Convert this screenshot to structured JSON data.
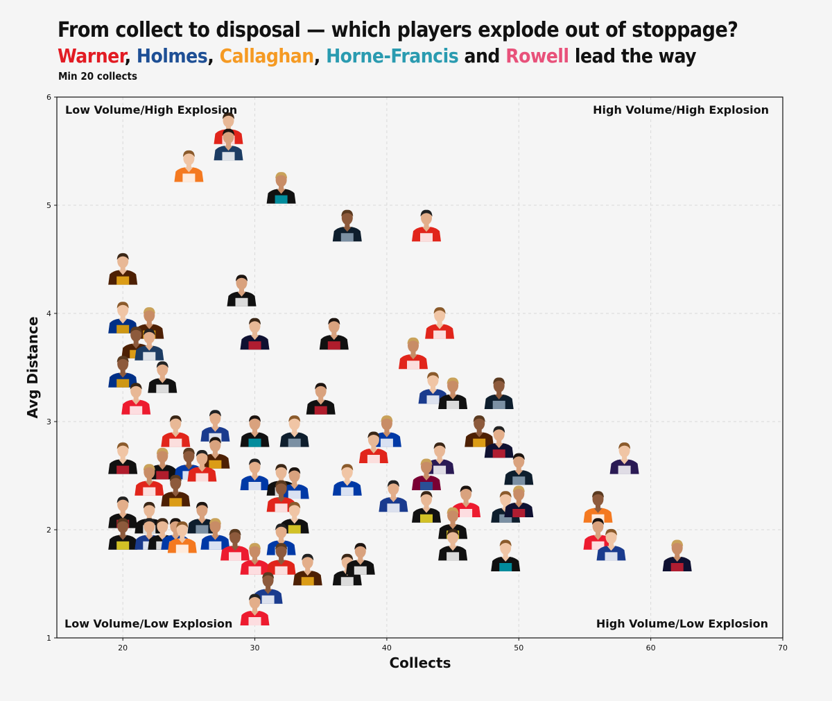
{
  "title": "From collect to disposal — which players explode out of stoppage?",
  "subtitle": {
    "parts": [
      {
        "text": "Warner",
        "color": "#e21b23"
      },
      {
        "text": ", ",
        "color": "#111111"
      },
      {
        "text": "Holmes",
        "color": "#1e4f95"
      },
      {
        "text": ", ",
        "color": "#111111"
      },
      {
        "text": "Callaghan",
        "color": "#f59a23"
      },
      {
        "text": ", ",
        "color": "#111111"
      },
      {
        "text": "Horne-Francis",
        "color": "#2a9bb0"
      },
      {
        "text": " and ",
        "color": "#111111"
      },
      {
        "text": "Rowell",
        "color": "#e8517a"
      },
      {
        "text": " lead the way",
        "color": "#111111"
      }
    ]
  },
  "note": "Min 20 collects",
  "chart_data": {
    "type": "scatter",
    "xlabel": "Collects",
    "ylabel": "Avg Distance",
    "xlim": [
      15,
      70
    ],
    "ylim": [
      1,
      6
    ],
    "xticks": [
      20,
      30,
      40,
      50,
      60,
      70
    ],
    "yticks": [
      1,
      2,
      3,
      4,
      5,
      6
    ],
    "grid": true,
    "marker": "player-headshot",
    "quadrant_labels": {
      "top_left": "Low Volume/High Explosion",
      "top_right": "High Volume/High Explosion",
      "bottom_left": "Low Volume/Low Explosion",
      "bottom_right": "High Volume/Low Explosion"
    },
    "points": [
      {
        "x": 28,
        "y": 5.7,
        "club": "Sydney"
      },
      {
        "x": 28,
        "y": 5.55,
        "club": "Geelong"
      },
      {
        "x": 25,
        "y": 5.35,
        "club": "GWS"
      },
      {
        "x": 32,
        "y": 5.15,
        "club": "Port Adelaide"
      },
      {
        "x": 37,
        "y": 4.8,
        "club": "Carlton"
      },
      {
        "x": 43,
        "y": 4.8,
        "club": "Sydney"
      },
      {
        "x": 20,
        "y": 4.4,
        "club": "Hawthorn"
      },
      {
        "x": 29,
        "y": 4.2,
        "club": "Collingwood"
      },
      {
        "x": 20,
        "y": 3.95,
        "club": "West Coast"
      },
      {
        "x": 22,
        "y": 3.9,
        "club": "Hawthorn"
      },
      {
        "x": 21,
        "y": 3.72,
        "club": "Hawthorn"
      },
      {
        "x": 22,
        "y": 3.7,
        "club": "Geelong"
      },
      {
        "x": 30,
        "y": 3.8,
        "club": "Melbourne"
      },
      {
        "x": 36,
        "y": 3.8,
        "club": "Essendon"
      },
      {
        "x": 44,
        "y": 3.9,
        "club": "Sydney"
      },
      {
        "x": 42,
        "y": 3.62,
        "club": "Sydney"
      },
      {
        "x": 20,
        "y": 3.45,
        "club": "West Coast"
      },
      {
        "x": 23,
        "y": 3.4,
        "club": "Collingwood"
      },
      {
        "x": 21,
        "y": 3.2,
        "club": "St Kilda"
      },
      {
        "x": 35,
        "y": 3.2,
        "club": "Essendon"
      },
      {
        "x": 43.5,
        "y": 3.3,
        "club": "North Melbourne"
      },
      {
        "x": 45,
        "y": 3.25,
        "club": "Collingwood"
      },
      {
        "x": 48.5,
        "y": 3.25,
        "club": "Carlton"
      },
      {
        "x": 27,
        "y": 2.95,
        "club": "North Melbourne"
      },
      {
        "x": 24,
        "y": 2.9,
        "club": "Sydney"
      },
      {
        "x": 30,
        "y": 2.9,
        "club": "Port Adelaide"
      },
      {
        "x": 33,
        "y": 2.9,
        "club": "Carlton"
      },
      {
        "x": 40,
        "y": 2.9,
        "club": "Western Bulldogs"
      },
      {
        "x": 47,
        "y": 2.9,
        "club": "Hawthorn"
      },
      {
        "x": 48.5,
        "y": 2.8,
        "club": "Melbourne"
      },
      {
        "x": 39,
        "y": 2.75,
        "club": "Sydney"
      },
      {
        "x": 27,
        "y": 2.7,
        "club": "Hawthorn"
      },
      {
        "x": 20,
        "y": 2.65,
        "club": "Essendon"
      },
      {
        "x": 23,
        "y": 2.6,
        "club": "Essendon"
      },
      {
        "x": 25,
        "y": 2.6,
        "club": "Western Bulldogs"
      },
      {
        "x": 26,
        "y": 2.58,
        "club": "Sydney"
      },
      {
        "x": 44,
        "y": 2.65,
        "club": "Fremantle"
      },
      {
        "x": 50,
        "y": 2.55,
        "club": "Carlton"
      },
      {
        "x": 58,
        "y": 2.65,
        "club": "Fremantle"
      },
      {
        "x": 22,
        "y": 2.45,
        "club": "Sydney"
      },
      {
        "x": 24,
        "y": 2.35,
        "club": "Hawthorn"
      },
      {
        "x": 30,
        "y": 2.5,
        "club": "Western Bulldogs"
      },
      {
        "x": 32,
        "y": 2.45,
        "club": "Collingwood"
      },
      {
        "x": 33,
        "y": 2.42,
        "club": "Western Bulldogs"
      },
      {
        "x": 37,
        "y": 2.45,
        "club": "Western Bulldogs"
      },
      {
        "x": 43,
        "y": 2.5,
        "club": "Brisbane"
      },
      {
        "x": 32,
        "y": 2.3,
        "club": "Sydney"
      },
      {
        "x": 40.5,
        "y": 2.3,
        "club": "North Melbourne"
      },
      {
        "x": 43,
        "y": 2.2,
        "club": "Richmond"
      },
      {
        "x": 46,
        "y": 2.25,
        "club": "St Kilda"
      },
      {
        "x": 49,
        "y": 2.2,
        "club": "Carlton"
      },
      {
        "x": 50,
        "y": 2.25,
        "club": "Melbourne"
      },
      {
        "x": 56,
        "y": 2.2,
        "club": "GWS"
      },
      {
        "x": 20,
        "y": 2.15,
        "club": "Essendon"
      },
      {
        "x": 22,
        "y": 2.1,
        "club": "Collingwood"
      },
      {
        "x": 26,
        "y": 2.1,
        "club": "Carlton"
      },
      {
        "x": 33,
        "y": 2.1,
        "club": "Richmond"
      },
      {
        "x": 45,
        "y": 2.05,
        "club": "Richmond"
      },
      {
        "x": 20,
        "y": 1.95,
        "club": "Richmond"
      },
      {
        "x": 22,
        "y": 1.95,
        "club": "North Melbourne"
      },
      {
        "x": 23,
        "y": 1.95,
        "club": "Collingwood"
      },
      {
        "x": 24,
        "y": 1.95,
        "club": "Western Bulldogs"
      },
      {
        "x": 24.5,
        "y": 1.92,
        "club": "GWS"
      },
      {
        "x": 27,
        "y": 1.95,
        "club": "Western Bulldogs"
      },
      {
        "x": 28.5,
        "y": 1.85,
        "club": "St Kilda"
      },
      {
        "x": 32,
        "y": 1.9,
        "club": "Western Bulldogs"
      },
      {
        "x": 45,
        "y": 1.85,
        "club": "Collingwood"
      },
      {
        "x": 56,
        "y": 1.95,
        "club": "St Kilda"
      },
      {
        "x": 57,
        "y": 1.85,
        "club": "North Melbourne"
      },
      {
        "x": 30,
        "y": 1.72,
        "club": "St Kilda"
      },
      {
        "x": 32,
        "y": 1.72,
        "club": "Sydney"
      },
      {
        "x": 34,
        "y": 1.62,
        "club": "Hawthorn"
      },
      {
        "x": 37,
        "y": 1.62,
        "club": "Collingwood"
      },
      {
        "x": 38,
        "y": 1.72,
        "club": "Collingwood"
      },
      {
        "x": 49,
        "y": 1.75,
        "club": "Port Adelaide"
      },
      {
        "x": 62,
        "y": 1.75,
        "club": "Melbourne"
      },
      {
        "x": 31,
        "y": 1.45,
        "club": "North Melbourne"
      },
      {
        "x": 30,
        "y": 1.25,
        "club": "St Kilda"
      }
    ]
  },
  "club_colors": {
    "Sydney": [
      "#e1251b",
      "#ffffff"
    ],
    "Geelong": [
      "#1c3c63",
      "#ffffff"
    ],
    "GWS": [
      "#f47920",
      "#ffffff"
    ],
    "Port Adelaide": [
      "#111111",
      "#00a2b5"
    ],
    "Carlton": [
      "#0e1e2d",
      "#8ea4b8"
    ],
    "Hawthorn": [
      "#4d2004",
      "#f5b31a"
    ],
    "Collingwood": [
      "#111111",
      "#ffffff"
    ],
    "West Coast": [
      "#003087",
      "#f2a900"
    ],
    "Melbourne": [
      "#0f1131",
      "#cc2031"
    ],
    "Essendon": [
      "#111111",
      "#cc2031"
    ],
    "St Kilda": [
      "#ed1b2f",
      "#ffffff"
    ],
    "North Melbourne": [
      "#1a3b8e",
      "#ffffff"
    ],
    "Western Bulldogs": [
      "#0039a6",
      "#ffffff"
    ],
    "Fremantle": [
      "#2a1a54",
      "#ffffff"
    ],
    "Brisbane": [
      "#7a0033",
      "#1c5da8"
    ],
    "Richmond": [
      "#111111",
      "#f5e12a"
    ]
  }
}
